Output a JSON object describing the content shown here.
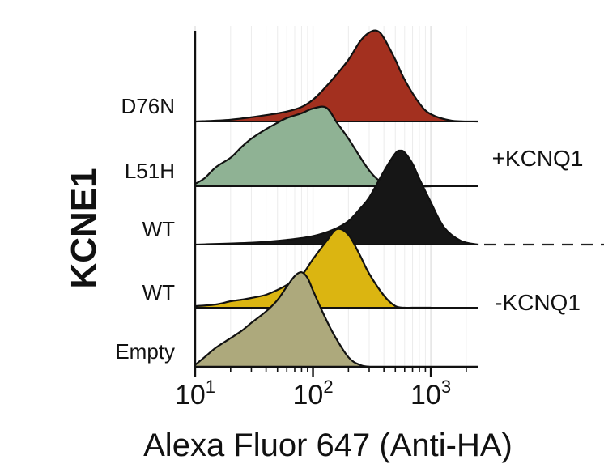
{
  "chart_data": {
    "type": "ridgeline",
    "title": "",
    "xlabel": "Alexa Fluor 647 (Anti-HA)",
    "ylabel": "KCNE1",
    "xscale": "log",
    "xlim": [
      10,
      2500
    ],
    "xticks": [
      {
        "value": 10,
        "base": "10",
        "exp": "1"
      },
      {
        "value": 100,
        "base": "10",
        "exp": "2"
      },
      {
        "value": 1000,
        "base": "10",
        "exp": "3"
      }
    ],
    "grid": "vertical",
    "groups": [
      {
        "label": "+KCNQ1",
        "series_start": 0,
        "series_end": 2
      },
      {
        "label": "-KCNQ1",
        "series_start": 3,
        "series_end": 4
      }
    ],
    "series": [
      {
        "name": "D76N",
        "color": "#a3301f",
        "x": [
          10,
          20,
          40,
          60,
          80,
          100,
          120,
          150,
          200,
          250,
          300,
          350,
          400,
          500,
          600,
          800,
          1000,
          1500,
          2500
        ],
        "y": [
          0.0,
          0.02,
          0.07,
          0.11,
          0.16,
          0.24,
          0.34,
          0.48,
          0.68,
          0.88,
          0.98,
          1.0,
          0.92,
          0.68,
          0.46,
          0.2,
          0.08,
          0.01,
          0.0
        ]
      },
      {
        "name": "L51H",
        "color": "#8fb294",
        "x": [
          10,
          12,
          15,
          20,
          25,
          30,
          40,
          50,
          60,
          80,
          100,
          130,
          160,
          200,
          300,
          400,
          600,
          1000
        ],
        "y": [
          0.03,
          0.1,
          0.24,
          0.36,
          0.5,
          0.6,
          0.72,
          0.8,
          0.86,
          0.92,
          0.98,
          0.99,
          0.8,
          0.6,
          0.2,
          0.04,
          0.0,
          0.0
        ]
      },
      {
        "name": "WT",
        "color": "#161616",
        "x": [
          10,
          30,
          60,
          100,
          150,
          200,
          250,
          300,
          400,
          500,
          550,
          600,
          700,
          800,
          1000,
          1300,
          1800,
          2500
        ],
        "y": [
          0.0,
          0.02,
          0.05,
          0.09,
          0.16,
          0.25,
          0.38,
          0.5,
          0.78,
          0.97,
          1.0,
          0.98,
          0.86,
          0.7,
          0.45,
          0.18,
          0.04,
          0.0
        ]
      },
      {
        "name": "WT",
        "color": "#dbb511",
        "x": [
          10,
          15,
          20,
          25,
          30,
          40,
          50,
          60,
          80,
          100,
          130,
          160,
          200,
          250,
          300,
          400,
          500,
          600,
          700,
          1000
        ],
        "y": [
          0.02,
          0.04,
          0.08,
          0.1,
          0.12,
          0.16,
          0.22,
          0.28,
          0.4,
          0.6,
          0.82,
          0.97,
          0.9,
          0.65,
          0.42,
          0.15,
          0.02,
          0.0,
          0.0,
          0.0
        ]
      },
      {
        "name": "Empty",
        "color": "#ada97c",
        "x": [
          10,
          12,
          15,
          20,
          25,
          30,
          40,
          50,
          60,
          70,
          80,
          90,
          100,
          120,
          150,
          200,
          250,
          300
        ],
        "y": [
          0.02,
          0.1,
          0.2,
          0.3,
          0.38,
          0.46,
          0.58,
          0.7,
          0.84,
          0.95,
          0.99,
          0.93,
          0.8,
          0.58,
          0.34,
          0.1,
          0.02,
          0.0
        ]
      }
    ]
  }
}
